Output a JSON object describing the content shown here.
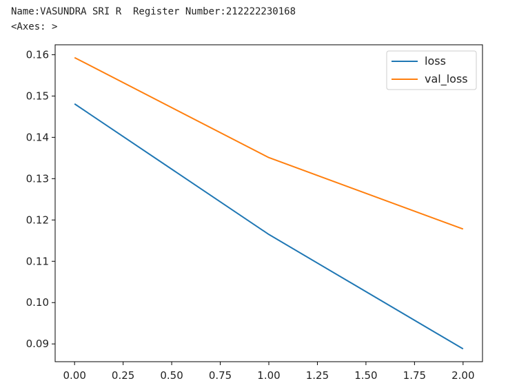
{
  "output": {
    "line1": "Name:VASUNDRA SRI R  Register Number:212222230168",
    "line2": "<Axes: >"
  },
  "chart_data": {
    "type": "line",
    "x": [
      0,
      1,
      2
    ],
    "series": [
      {
        "name": "loss",
        "values": [
          0.1481,
          0.1165,
          0.0888
        ],
        "color": "#1f77b4"
      },
      {
        "name": "val_loss",
        "values": [
          0.1593,
          0.1351,
          0.1178
        ],
        "color": "#ff7f0e"
      }
    ],
    "xlim": [
      -0.1,
      2.1
    ],
    "ylim": [
      0.0857,
      0.1624
    ],
    "xticks": [
      "0.00",
      "0.25",
      "0.50",
      "0.75",
      "1.00",
      "1.25",
      "1.50",
      "1.75",
      "2.00"
    ],
    "yticks": [
      "0.09",
      "0.10",
      "0.11",
      "0.12",
      "0.13",
      "0.14",
      "0.15",
      "0.16"
    ],
    "grid": false,
    "legend_position": "top-right",
    "title": "",
    "xlabel": "",
    "ylabel": ""
  }
}
